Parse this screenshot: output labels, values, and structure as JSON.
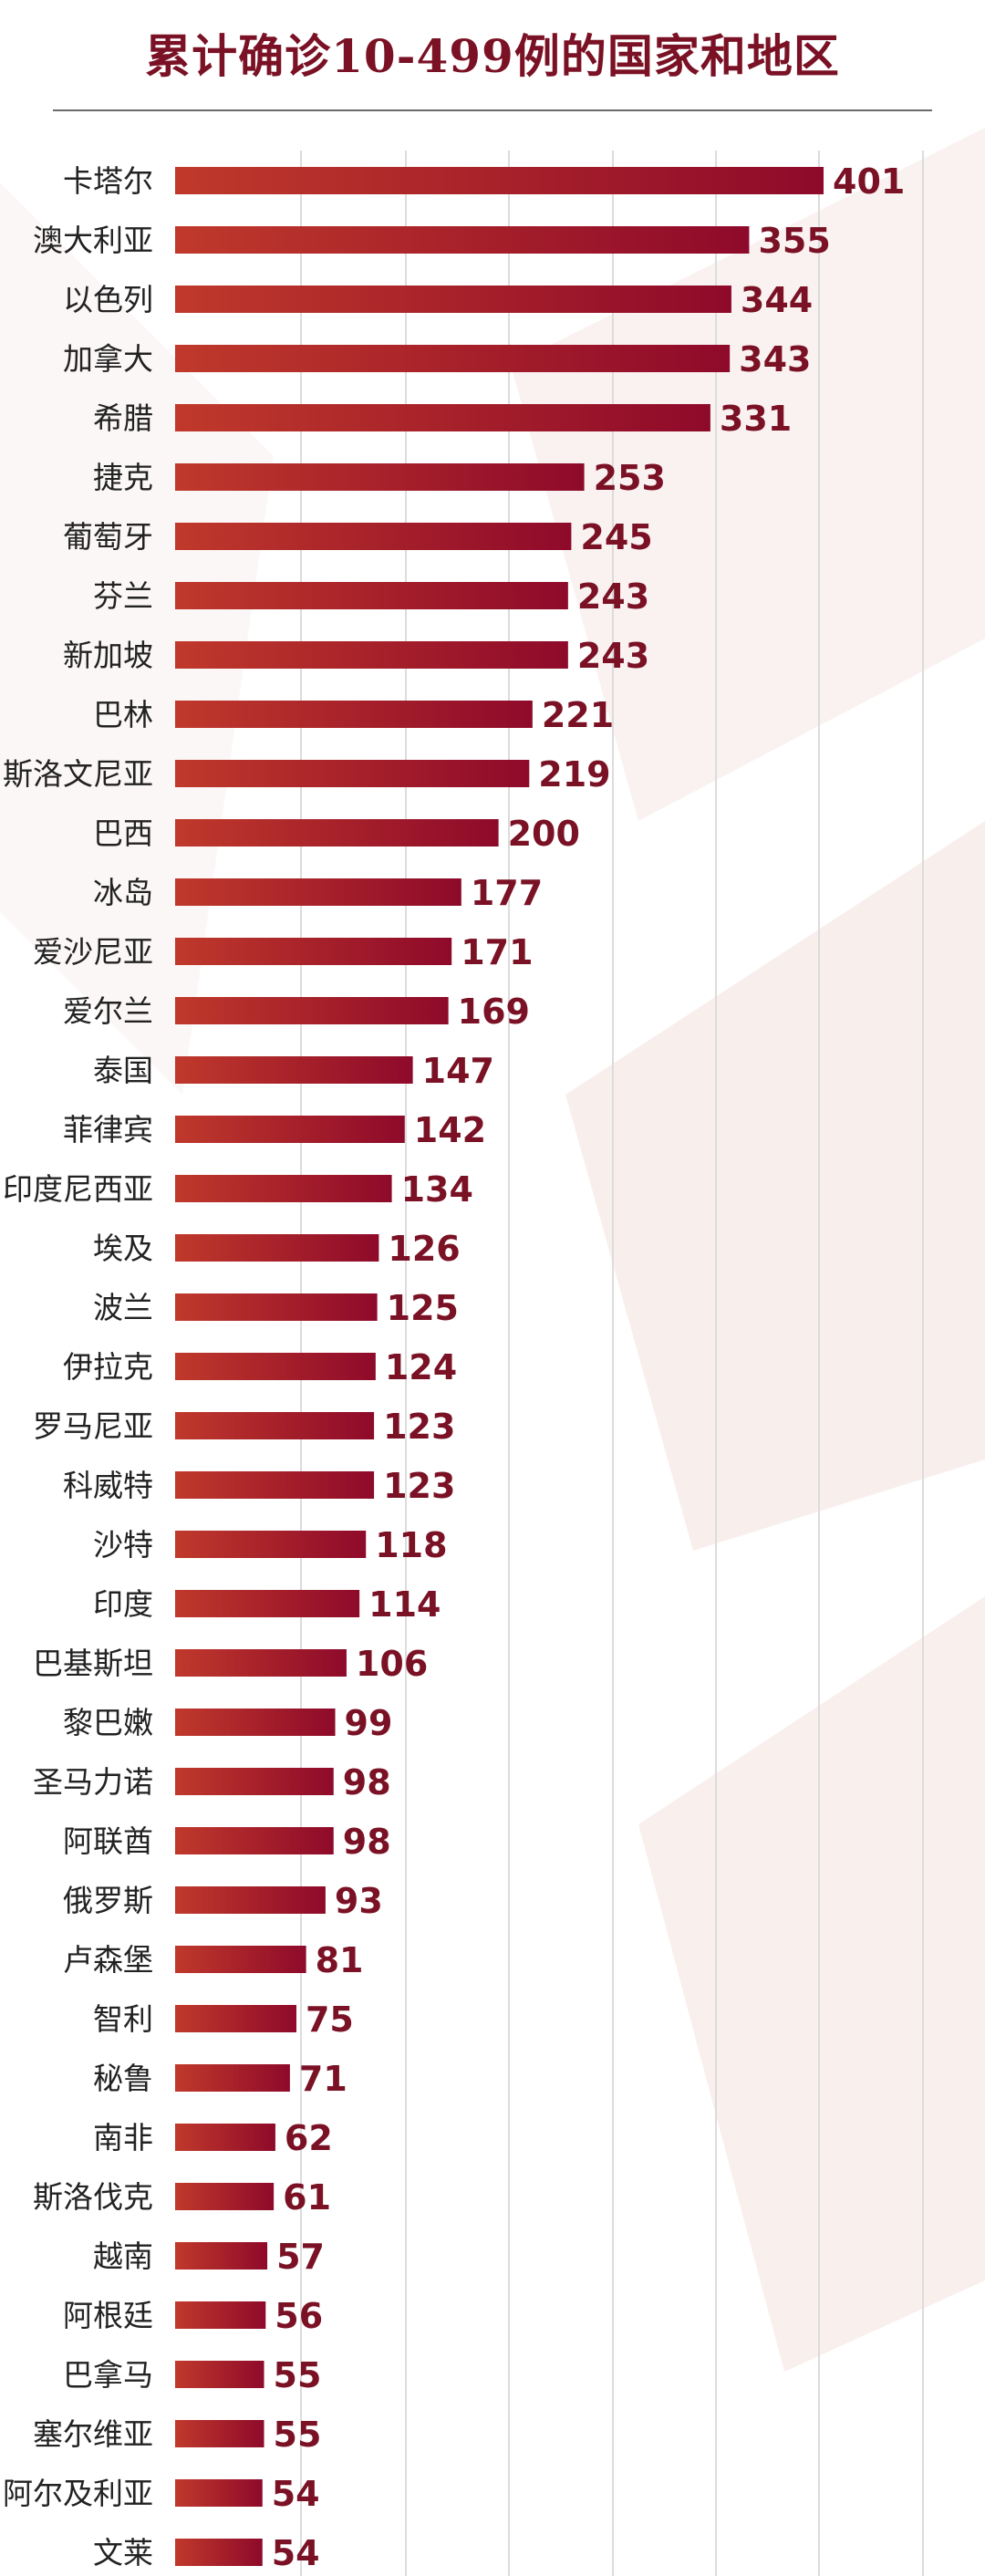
{
  "colors": {
    "title": "#7a1124",
    "bar_start": "#c0392b",
    "bar_end": "#8e0a2a",
    "value": "#7a1124",
    "grid": "#dcdcdc"
  },
  "chart_data": {
    "type": "bar",
    "orientation": "horizontal",
    "title": "累计确诊10-499例的国家和地区",
    "xlim": [
      0,
      420
    ],
    "grid": true,
    "categories": [
      "卡塔尔",
      "澳大利亚",
      "以色列",
      "加拿大",
      "希腊",
      "捷克",
      "葡萄牙",
      "芬兰",
      "新加坡",
      "巴林",
      "斯洛文尼亚",
      "巴西",
      "冰岛",
      "爱沙尼亚",
      "爱尔兰",
      "泰国",
      "菲律宾",
      "印度尼西亚",
      "埃及",
      "波兰",
      "伊拉克",
      "罗马尼亚",
      "科威特",
      "沙特",
      "印度",
      "巴基斯坦",
      "黎巴嫩",
      "圣马力诺",
      "阿联酋",
      "俄罗斯",
      "卢森堡",
      "智利",
      "秘鲁",
      "南非",
      "斯洛伐克",
      "越南",
      "阿根廷",
      "巴拿马",
      "塞尔维亚",
      "阿尔及利亚",
      "文莱"
    ],
    "values": [
      401,
      355,
      344,
      343,
      331,
      253,
      245,
      243,
      243,
      221,
      219,
      200,
      177,
      171,
      169,
      147,
      142,
      134,
      126,
      125,
      124,
      123,
      123,
      118,
      114,
      106,
      99,
      98,
      98,
      93,
      81,
      75,
      71,
      62,
      61,
      57,
      56,
      55,
      55,
      54,
      54
    ]
  }
}
